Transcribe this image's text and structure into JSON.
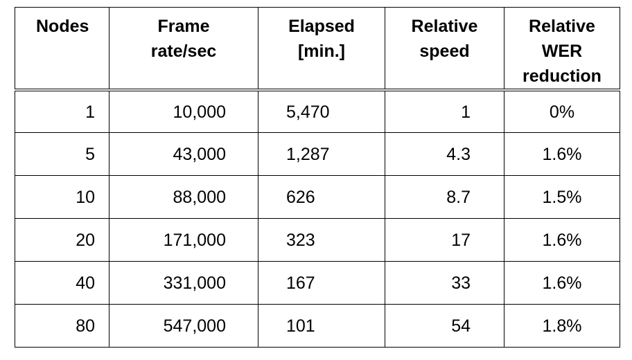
{
  "chart_data": {
    "type": "table",
    "columns": [
      {
        "key": "nodes",
        "lines": [
          "Nodes"
        ]
      },
      {
        "key": "frame_rate",
        "lines": [
          "Frame",
          "rate/sec"
        ]
      },
      {
        "key": "elapsed",
        "lines": [
          "Elapsed",
          "[min.]"
        ]
      },
      {
        "key": "relative_speed",
        "lines": [
          "Relative",
          "speed"
        ]
      },
      {
        "key": "wer_reduction",
        "lines": [
          "Relative",
          "WER",
          "reduction"
        ]
      }
    ],
    "rows": [
      [
        "1",
        "10,000",
        "5,470",
        "1",
        "0%"
      ],
      [
        "5",
        "43,000",
        "1,287",
        "4.3",
        "1.6%"
      ],
      [
        "10",
        "88,000",
        "626",
        "8.7",
        "1.5%"
      ],
      [
        "20",
        "171,000",
        "323",
        "17",
        "1.6%"
      ],
      [
        "40",
        "331,000",
        "167",
        "33",
        "1.6%"
      ],
      [
        "80",
        "547,000",
        "101",
        "54",
        "1.8%"
      ]
    ]
  }
}
